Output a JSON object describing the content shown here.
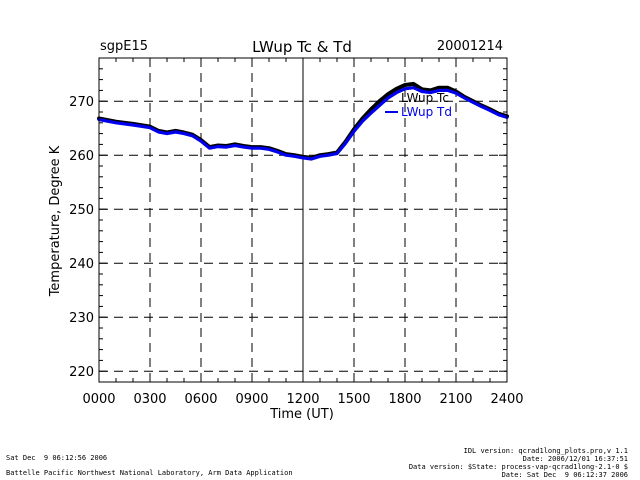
{
  "chart_data": {
    "type": "line",
    "title": "LWup Tc & Td",
    "site_label": "sgpE15",
    "date_label": "20001214",
    "xlabel": "Time (UT)",
    "ylabel": "Temperature, Degree K",
    "xlim": [
      0,
      2400
    ],
    "ylim": [
      218,
      278
    ],
    "x_ticks": [
      "0000",
      "0300",
      "0600",
      "0900",
      "1200",
      "1500",
      "1800",
      "2100",
      "2400"
    ],
    "x_tick_values": [
      0,
      300,
      600,
      900,
      1200,
      1500,
      1800,
      2100,
      2400
    ],
    "y_ticks": [
      220,
      230,
      240,
      250,
      260,
      270
    ],
    "grid": true,
    "legend_position": "top-right, inside plot",
    "series": [
      {
        "name": "LWup Tc",
        "color": "#000000",
        "x": [
          0,
          100,
          200,
          300,
          350,
          400,
          450,
          500,
          550,
          600,
          650,
          700,
          750,
          800,
          850,
          900,
          950,
          1000,
          1050,
          1100,
          1150,
          1200,
          1250,
          1300,
          1350,
          1400,
          1450,
          1500,
          1550,
          1600,
          1650,
          1700,
          1750,
          1800,
          1850,
          1900,
          1950,
          2000,
          2050,
          2100,
          2150,
          2200,
          2250,
          2300,
          2350,
          2400
        ],
        "y": [
          266.8,
          266.2,
          265.8,
          265.3,
          264.5,
          264.2,
          264.5,
          264.2,
          263.8,
          262.8,
          261.5,
          261.8,
          261.7,
          262.0,
          261.7,
          261.5,
          261.5,
          261.3,
          260.8,
          260.2,
          260.0,
          259.7,
          259.5,
          260.0,
          260.2,
          260.5,
          262.5,
          264.8,
          266.8,
          268.5,
          270.0,
          271.3,
          272.3,
          273.0,
          273.2,
          272.2,
          272.0,
          272.5,
          272.5,
          271.8,
          270.8,
          270.0,
          269.2,
          268.5,
          267.7,
          267.2
        ]
      },
      {
        "name": "LWup Td",
        "color": "#0000ee",
        "x": [
          0,
          100,
          200,
          300,
          350,
          400,
          450,
          500,
          550,
          600,
          650,
          700,
          750,
          800,
          850,
          900,
          950,
          1000,
          1050,
          1100,
          1150,
          1200,
          1250,
          1300,
          1350,
          1400,
          1450,
          1500,
          1550,
          1600,
          1650,
          1700,
          1750,
          1800,
          1850,
          1900,
          1950,
          2000,
          2050,
          2100,
          2150,
          2200,
          2250,
          2300,
          2350,
          2400
        ],
        "y": [
          266.6,
          266.0,
          265.6,
          265.1,
          264.3,
          264.0,
          264.3,
          264.0,
          263.6,
          262.6,
          261.3,
          261.6,
          261.5,
          261.8,
          261.5,
          261.3,
          261.3,
          261.1,
          260.6,
          260.0,
          259.8,
          259.5,
          259.3,
          259.8,
          260.0,
          260.3,
          262.2,
          264.4,
          266.3,
          267.8,
          269.2,
          270.6,
          271.6,
          272.3,
          272.5,
          271.8,
          271.6,
          272.0,
          272.0,
          271.5,
          270.6,
          269.8,
          269.0,
          268.3,
          267.5,
          267.0
        ]
      }
    ]
  },
  "footer": {
    "left_date": "Sat Dec  9 06:12:56 2006",
    "left_org": "Battelle Pacific Northwest National Laboratory, Arm Data Application",
    "right_line1": "IDL version: qcrad1long_plots.pro,v 1.1",
    "right_line2": "Date: 2006/12/01 16:37:51",
    "right_line3": "Data version: $State: process-vap-qcrad1long-2.1-0 $",
    "right_line4": "Date: Sat Dec  9 06:12:37 2006"
  }
}
